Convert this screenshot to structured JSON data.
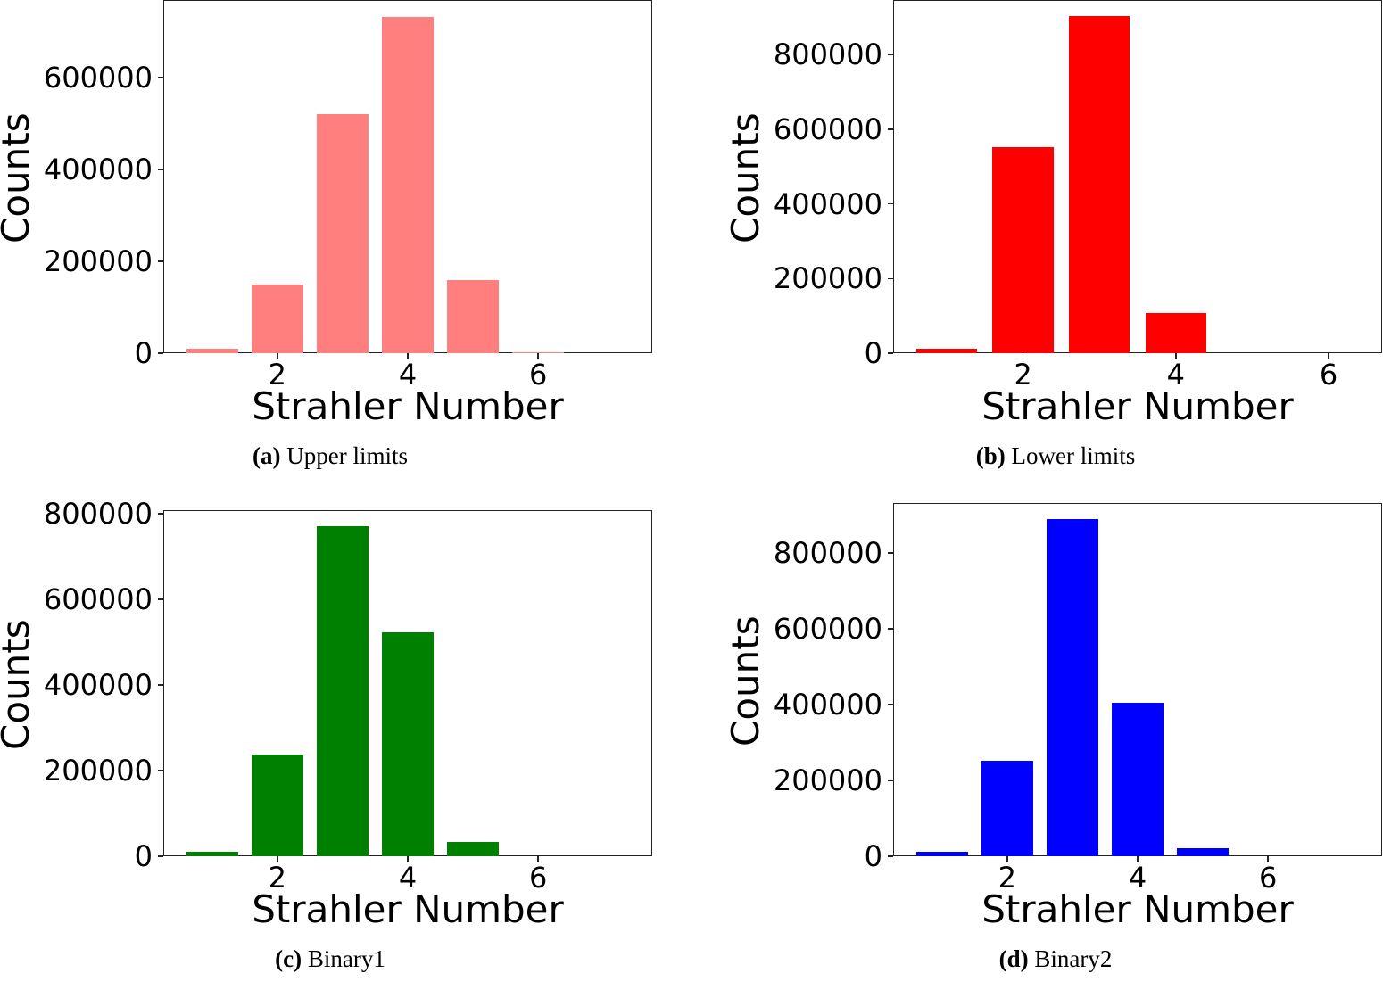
{
  "figure": {
    "panels": [
      {
        "id": "a",
        "caption_letter": "(a)",
        "caption_text": " Upper limits"
      },
      {
        "id": "b",
        "caption_letter": "(b)",
        "caption_text": " Lower limits"
      },
      {
        "id": "c",
        "caption_letter": "(c)",
        "caption_text": " Binary1"
      },
      {
        "id": "d",
        "caption_letter": "(d)",
        "caption_text": " Binary2"
      }
    ]
  },
  "chart_data": [
    {
      "type": "bar",
      "title": "(a) Upper limits",
      "xlabel": "Strahler Number",
      "ylabel": "Counts",
      "color": "#ff7f7f",
      "categories": [
        1,
        2,
        3,
        4,
        5,
        6,
        7
      ],
      "values": [
        10000,
        150000,
        520000,
        732000,
        159000,
        2000,
        0
      ],
      "xticks": [
        2,
        4,
        6
      ],
      "yticks": [
        0,
        200000,
        400000,
        600000
      ],
      "ytick_labels": [
        "0",
        "200000",
        "400000",
        "600000"
      ],
      "xlim": [
        0.25,
        7.75
      ],
      "ylim": [
        0,
        769000
      ],
      "grid": false,
      "legend": null
    },
    {
      "type": "bar",
      "title": "(b) Lower limits",
      "xlabel": "Strahler Number",
      "ylabel": "Counts",
      "color": "#ff0000",
      "categories": [
        1,
        2,
        3,
        4,
        5,
        6
      ],
      "values": [
        11000,
        551000,
        903000,
        108000,
        0,
        0
      ],
      "xticks": [
        2,
        4,
        6
      ],
      "yticks": [
        0,
        200000,
        400000,
        600000,
        800000
      ],
      "ytick_labels": [
        "0",
        "200000",
        "400000",
        "600000",
        "800000"
      ],
      "xlim": [
        0.3,
        6.7
      ],
      "ylim": [
        0,
        946000
      ],
      "grid": false,
      "legend": null
    },
    {
      "type": "bar",
      "title": "(c) Binary1",
      "xlabel": "Strahler Number",
      "ylabel": "Counts",
      "color": "#008000",
      "categories": [
        1,
        2,
        3,
        4,
        5,
        6,
        7
      ],
      "values": [
        10000,
        237000,
        770000,
        523000,
        33000,
        0,
        0
      ],
      "xticks": [
        2,
        4,
        6
      ],
      "yticks": [
        0,
        200000,
        400000,
        600000,
        800000
      ],
      "ytick_labels": [
        "0",
        "200000",
        "400000",
        "600000",
        "800000"
      ],
      "xlim": [
        0.25,
        7.75
      ],
      "ylim": [
        0,
        808000
      ],
      "grid": false,
      "legend": null
    },
    {
      "type": "bar",
      "title": "(d) Binary2",
      "xlabel": "Strahler Number",
      "ylabel": "Counts",
      "color": "#0000ff",
      "categories": [
        1,
        2,
        3,
        4,
        5,
        6,
        7
      ],
      "values": [
        12000,
        252000,
        889000,
        405000,
        21000,
        0,
        0
      ],
      "xticks": [
        2,
        4,
        6
      ],
      "yticks": [
        0,
        200000,
        400000,
        600000,
        800000
      ],
      "ytick_labels": [
        "0",
        "200000",
        "400000",
        "600000",
        "800000"
      ],
      "xlim": [
        0.25,
        7.75
      ],
      "ylim": [
        0,
        932000
      ],
      "grid": false,
      "legend": null
    }
  ]
}
